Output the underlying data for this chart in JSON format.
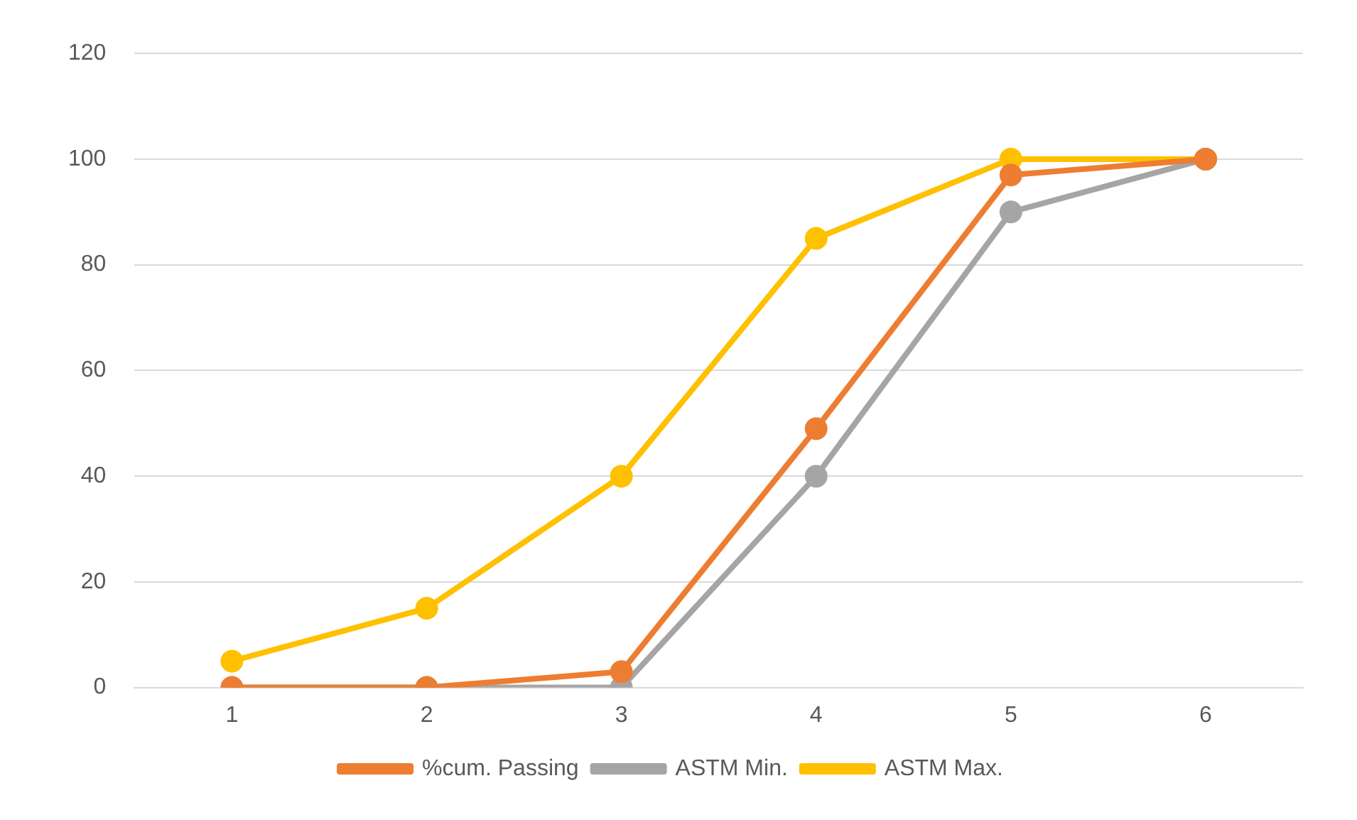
{
  "chart_data": {
    "type": "line",
    "categories": [
      "1",
      "2",
      "3",
      "4",
      "5",
      "6"
    ],
    "series": [
      {
        "name": "%cum. Passing",
        "color": "#ed7d31",
        "values": [
          0,
          0,
          3,
          49,
          97,
          100
        ]
      },
      {
        "name": "ASTM Min.",
        "color": "#a5a5a5",
        "values": [
          0,
          0,
          0,
          40,
          90,
          100
        ]
      },
      {
        "name": "ASTM Max.",
        "color": "#ffc000",
        "values": [
          5,
          15,
          40,
          85,
          100,
          100
        ]
      }
    ],
    "ylim": [
      0,
      120
    ],
    "yticks": [
      0,
      20,
      40,
      60,
      80,
      100,
      120
    ],
    "grid": "y",
    "legend": "bottom",
    "marker": "circle",
    "line_style": "solid"
  }
}
